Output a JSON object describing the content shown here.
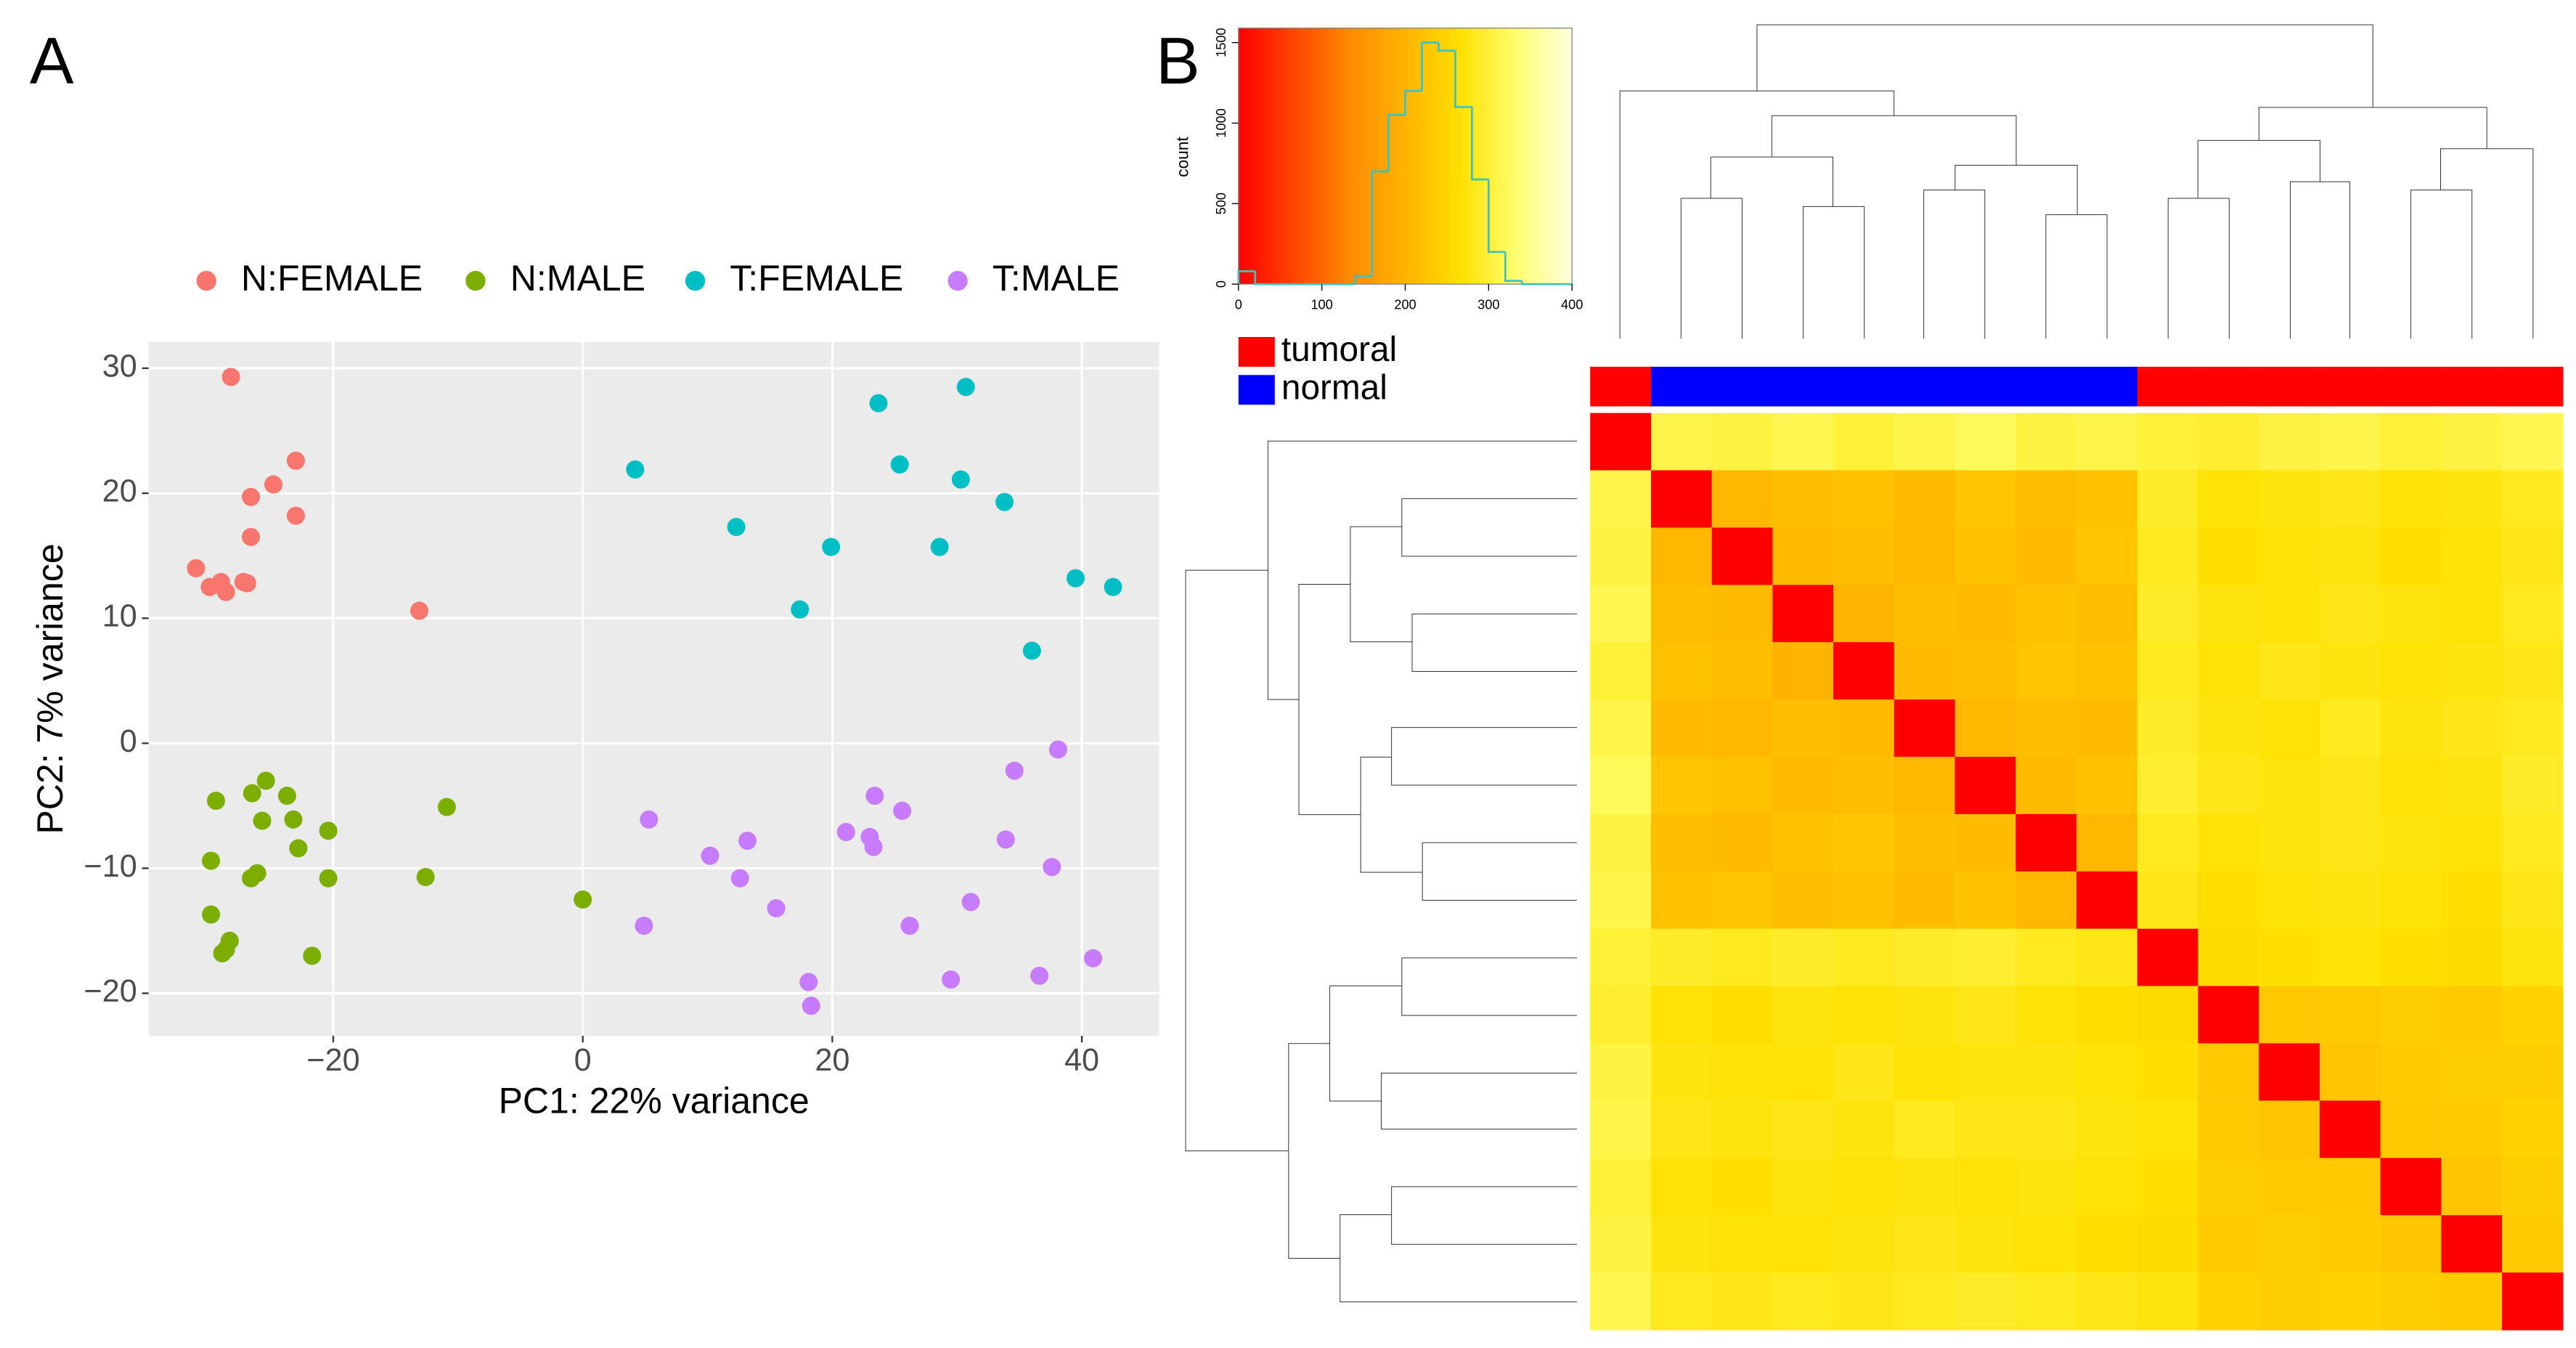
{
  "chart_data": [
    {
      "type": "scatter",
      "panel": "A",
      "xlabel": "PC1: 22% variance",
      "ylabel": "PC2: 7% variance",
      "xlim": [
        -34.8,
        46.2
      ],
      "ylim": [
        -23.4,
        32.1
      ],
      "xticks": [
        {
          "value": -20,
          "label": "−20"
        },
        0,
        20,
        40
      ],
      "yticks": [
        {
          "value": -20,
          "label": "−20"
        },
        {
          "value": -10,
          "label": "−10"
        },
        0,
        10,
        20,
        30
      ],
      "grid": true,
      "series": [
        {
          "name": "N:FEMALE",
          "color": "#F8766D",
          "x": [
            -28.2,
            -23.0,
            -24.8,
            -26.6,
            -23.0,
            -26.6,
            -31.0,
            -29.9,
            -29.0,
            -27.2,
            -26.9,
            -28.6,
            -13.1
          ],
          "y": [
            29.3,
            22.6,
            20.7,
            19.7,
            18.2,
            16.5,
            14.0,
            12.5,
            12.9,
            12.9,
            12.8,
            12.1,
            10.6
          ]
        },
        {
          "name": "N:MALE",
          "color": "#7CAE00",
          "x": [
            -29.4,
            -25.4,
            -26.5,
            -23.7,
            -25.7,
            -23.2,
            -20.4,
            -10.9,
            -22.8,
            -29.8,
            -26.1,
            -26.6,
            -20.4,
            -12.6,
            -29.8,
            -28.3,
            -28.6,
            -28.9,
            -21.7,
            0.0
          ],
          "y": [
            -4.6,
            -3.0,
            -4.0,
            -4.2,
            -6.2,
            -6.1,
            -7.0,
            -5.1,
            -8.4,
            -9.4,
            -10.4,
            -10.8,
            -10.8,
            -10.7,
            -13.7,
            -15.8,
            -16.5,
            -16.8,
            -17.0,
            -12.5
          ]
        },
        {
          "name": "T:FEMALE",
          "color": "#00BFC4",
          "x": [
            4.2,
            23.7,
            30.7,
            12.3,
            25.4,
            30.3,
            33.8,
            19.9,
            28.6,
            17.4,
            39.5,
            42.5,
            36.0
          ],
          "y": [
            21.9,
            27.2,
            28.5,
            17.3,
            22.3,
            21.1,
            19.3,
            15.7,
            15.7,
            10.7,
            13.2,
            12.5,
            7.4
          ]
        },
        {
          "name": "T:MALE",
          "color": "#C77CFF",
          "x": [
            38.1,
            34.6,
            23.4,
            5.3,
            25.6,
            21.1,
            23.0,
            23.3,
            13.2,
            33.9,
            10.2,
            37.6,
            12.6,
            31.1,
            15.5,
            4.9,
            26.2,
            40.9,
            36.6,
            29.5,
            18.1,
            18.3
          ],
          "y": [
            -0.5,
            -2.2,
            -4.2,
            -6.1,
            -5.4,
            -7.1,
            -7.5,
            -8.3,
            -7.8,
            -7.7,
            -9.0,
            -9.9,
            -10.8,
            -12.7,
            -13.2,
            -14.6,
            -14.6,
            -17.2,
            -18.6,
            -18.9,
            -19.1,
            -21.0
          ]
        }
      ]
    },
    {
      "type": "heatmap",
      "panel": "B",
      "colorscale": [
        "#ff0000",
        "#ff4500",
        "#ff8a00",
        "#ffb400",
        "#ffe000",
        "#ffff70",
        "#ffffe0"
      ],
      "annotation": {
        "legend": [
          {
            "name": "tumoral",
            "color": "#ff0000"
          },
          {
            "name": "normal",
            "color": "#0000ff"
          }
        ],
        "groups": [
          0,
          1,
          1,
          1,
          1,
          1,
          1,
          1,
          1,
          0,
          0,
          0,
          0,
          0,
          0,
          0
        ]
      },
      "matrix": [
        [
          0,
          310,
          305,
          315,
          300,
          310,
          320,
          305,
          310,
          300,
          295,
          305,
          310,
          300,
          305,
          315
        ],
        [
          310,
          0,
          205,
          215,
          220,
          210,
          225,
          215,
          220,
          290,
          270,
          275,
          280,
          270,
          275,
          285
        ],
        [
          305,
          205,
          0,
          210,
          215,
          205,
          220,
          210,
          225,
          285,
          265,
          270,
          275,
          265,
          270,
          280
        ],
        [
          315,
          215,
          210,
          0,
          200,
          215,
          210,
          220,
          215,
          290,
          275,
          270,
          280,
          275,
          270,
          285
        ],
        [
          300,
          220,
          215,
          200,
          0,
          210,
          215,
          225,
          220,
          285,
          270,
          280,
          275,
          270,
          275,
          280
        ],
        [
          310,
          210,
          205,
          215,
          210,
          0,
          205,
          215,
          210,
          290,
          275,
          270,
          285,
          275,
          280,
          285
        ],
        [
          320,
          225,
          220,
          210,
          215,
          205,
          0,
          210,
          220,
          295,
          280,
          275,
          280,
          270,
          275,
          290
        ],
        [
          305,
          215,
          210,
          220,
          225,
          215,
          210,
          0,
          205,
          285,
          270,
          275,
          280,
          275,
          270,
          285
        ],
        [
          310,
          220,
          225,
          215,
          220,
          210,
          220,
          205,
          0,
          280,
          265,
          270,
          275,
          270,
          265,
          280
        ],
        [
          300,
          290,
          285,
          290,
          285,
          290,
          295,
          285,
          280,
          0,
          260,
          265,
          270,
          265,
          260,
          275
        ],
        [
          295,
          270,
          265,
          275,
          270,
          275,
          280,
          270,
          265,
          260,
          0,
          230,
          235,
          240,
          235,
          245
        ],
        [
          305,
          275,
          270,
          270,
          280,
          270,
          275,
          275,
          270,
          265,
          230,
          0,
          225,
          235,
          240,
          240
        ],
        [
          310,
          280,
          275,
          280,
          275,
          285,
          280,
          280,
          275,
          270,
          235,
          225,
          0,
          230,
          235,
          245
        ],
        [
          300,
          270,
          265,
          275,
          270,
          275,
          270,
          275,
          270,
          265,
          240,
          235,
          230,
          0,
          225,
          240
        ],
        [
          305,
          275,
          270,
          270,
          275,
          280,
          275,
          270,
          265,
          260,
          235,
          240,
          235,
          225,
          0,
          235
        ],
        [
          315,
          285,
          280,
          285,
          280,
          285,
          290,
          285,
          280,
          275,
          245,
          240,
          245,
          240,
          235,
          0
        ]
      ],
      "color_key": {
        "ylabel": "count",
        "color": "#40c0c0",
        "bins": [
          0,
          20,
          40,
          60,
          80,
          100,
          120,
          140,
          160,
          180,
          200,
          220,
          240,
          260,
          280,
          300,
          320,
          340,
          360,
          380,
          400
        ],
        "counts": [
          80,
          0,
          0,
          0,
          0,
          0,
          0,
          50,
          700,
          1050,
          1200,
          1500,
          1450,
          1100,
          650,
          200,
          20,
          0,
          0,
          0
        ],
        "xlim": [
          0,
          400
        ],
        "ylim": [
          0,
          1590
        ],
        "xticks": [
          0,
          100,
          200,
          300,
          400
        ],
        "yticks": [
          0,
          500,
          1000,
          1500
        ]
      }
    }
  ]
}
